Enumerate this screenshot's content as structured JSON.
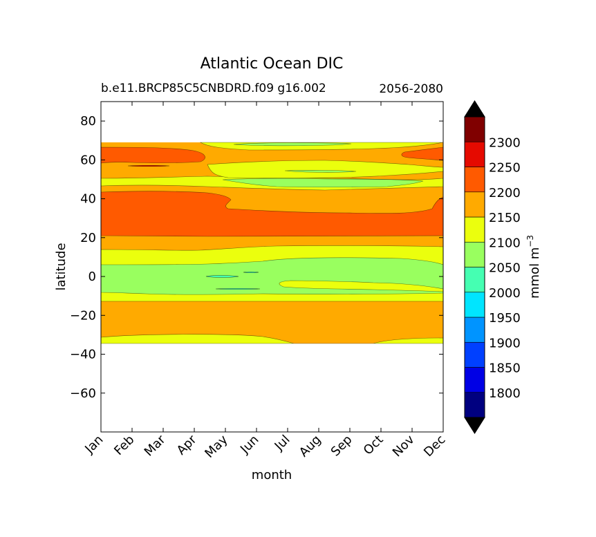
{
  "chart_data": {
    "type": "contour",
    "title": "Atlantic Ocean DIC",
    "subtitle_left": "b.e11.BRCP85C5CNBDRD.f09 g16.002",
    "subtitle_right": "2056-2080",
    "xlabel": "month",
    "ylabel": "latitude",
    "x_ticks": [
      "Jan",
      "Feb",
      "Mar",
      "Apr",
      "May",
      "Jun",
      "Jul",
      "Aug",
      "Sep",
      "Oct",
      "Nov",
      "Dec"
    ],
    "y_ticks": [
      80,
      60,
      40,
      20,
      0,
      -20,
      -40,
      -60
    ],
    "y_tick_labels": [
      "80",
      "60",
      "40",
      "20",
      "0",
      "−20",
      "−40",
      "−60"
    ],
    "ylim": [
      -80,
      90
    ],
    "data_extent_lat": [
      -34,
      69
    ],
    "colorbar": {
      "label": "mmol m",
      "label_superscript": "−3",
      "levels": [
        1750,
        1800,
        1850,
        1900,
        1950,
        2000,
        2050,
        2100,
        2150,
        2200,
        2250,
        2300,
        2350
      ],
      "tick_labels": [
        "1800",
        "1850",
        "1900",
        "1950",
        "2000",
        "2050",
        "2100",
        "2150",
        "2200",
        "2250",
        "2300"
      ],
      "colors": [
        "#000080",
        "#0000e5",
        "#0040ff",
        "#0094ff",
        "#00e5ff",
        "#45ffb2",
        "#99ff5f",
        "#ebff0d",
        "#ffaa00",
        "#ff5a00",
        "#e50a00",
        "#800000"
      ],
      "extend": "both"
    },
    "regions": [
      {
        "value_range": [
          2150,
          2200
        ],
        "description": "broad band -30 to -12 and 48 to 69"
      },
      {
        "value_range": [
          2200,
          2250
        ],
        "description": "band 21 to 43 and 58 to 65 in winter"
      },
      {
        "value_range": [
          2100,
          2150
        ],
        "description": "bands -34 to -30, -12 to -8, 6 to 15, 50 to 60"
      },
      {
        "value_range": [
          2050,
          2100
        ],
        "description": "equatorial band -8 to 6 and 50 to 53 / 67 to 69 in summer"
      },
      {
        "value_range": [
          2000,
          2050
        ],
        "description": "small patches near 0 in May and near 54 in Aug"
      }
    ]
  }
}
